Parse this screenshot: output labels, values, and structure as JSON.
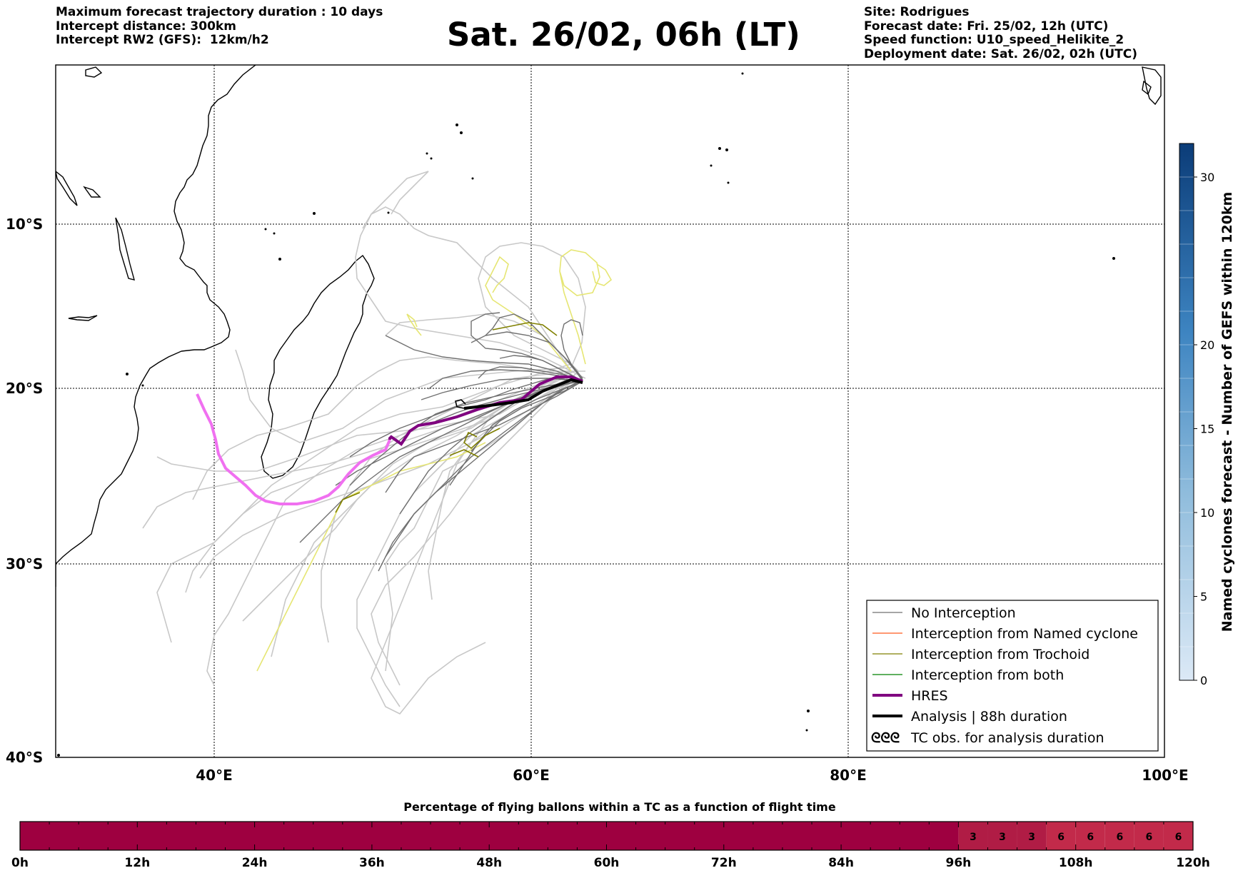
{
  "header": {
    "left_lines": [
      "Maximum forecast trajectory duration : 10 days",
      "Intercept distance: 300km",
      "Intercept RW2 (GFS):  12km/h2"
    ],
    "title": "Sat. 26/02, 06h (LT)",
    "right_lines": [
      "Site: Rodrigues",
      "Forecast date: Fri. 25/02, 12h (UTC)",
      "Speed function: U10_speed_Helikite_2",
      "Deployment date: Sat. 26/02, 02h (UTC)"
    ]
  },
  "map": {
    "lon_range": [
      30,
      100
    ],
    "lat_range": [
      -40,
      0
    ],
    "lat_labels": [
      "10°S",
      "20°S",
      "30°S",
      "40°S"
    ],
    "lon_labels": [
      "40°E",
      "60°E",
      "80°E",
      "100°E"
    ],
    "grid": true,
    "legend_placement": "bottom-right"
  },
  "legend": {
    "items": [
      {
        "label": "No Interception",
        "color": "#707070",
        "width": 1.2
      },
      {
        "label": "Interception from Named cyclone",
        "color": "#ff5a1f",
        "width": 1.2
      },
      {
        "label": "Interception from Trochoid",
        "color": "#808000",
        "width": 1.2
      },
      {
        "label": "Interception from both",
        "color": "#008000",
        "width": 1.2
      },
      {
        "label": "HRES",
        "color": "#800080",
        "width": 4
      },
      {
        "label": "Analysis | 88h duration",
        "color": "#000000",
        "width": 4
      }
    ],
    "tc_symbol": "ᘓᘓᘓ",
    "tc_label": "TC obs. for analysis duration"
  },
  "colorbar_right": {
    "label": "Named cyclones forecast - Number of GEFS within 120km",
    "ticks": [
      "0",
      "5",
      "10",
      "15",
      "20",
      "30"
    ],
    "tick_values": [
      0,
      5,
      10,
      15,
      20,
      30
    ],
    "max": 32,
    "color_low": "#dce9f6",
    "color_high": "#0b3c78"
  },
  "bottom_bar": {
    "title": "Percentage of flying ballons within a TC as a function of flight time",
    "tick_labels": [
      "0h",
      "12h",
      "24h",
      "36h",
      "48h",
      "60h",
      "72h",
      "84h",
      "96h",
      "108h",
      "120h"
    ],
    "segments": [
      {
        "from_h": 0,
        "to_h": 96,
        "value": "",
        "color": "#9e0040"
      },
      {
        "from_h": 96,
        "to_h": 99,
        "value": "3",
        "color": "#b01c45"
      },
      {
        "from_h": 99,
        "to_h": 102,
        "value": "3",
        "color": "#b01c45"
      },
      {
        "from_h": 102,
        "to_h": 105,
        "value": "3",
        "color": "#b01c45"
      },
      {
        "from_h": 105,
        "to_h": 108,
        "value": "6",
        "color": "#c22a4a"
      },
      {
        "from_h": 108,
        "to_h": 111,
        "value": "6",
        "color": "#c22a4a"
      },
      {
        "from_h": 111,
        "to_h": 114,
        "value": "6",
        "color": "#c22a4a"
      },
      {
        "from_h": 114,
        "to_h": 117,
        "value": "6",
        "color": "#c22a4a"
      },
      {
        "from_h": 117,
        "to_h": 120,
        "value": "6",
        "color": "#c22a4a"
      }
    ]
  },
  "colors": {
    "hres_late": "#f070f0",
    "hres": "#800080",
    "analysis": "#000000",
    "no_interception": "#707070",
    "trochoid": "#808000",
    "ensemble_far": "#c8c8c8",
    "yellow": "#e6e673"
  }
}
